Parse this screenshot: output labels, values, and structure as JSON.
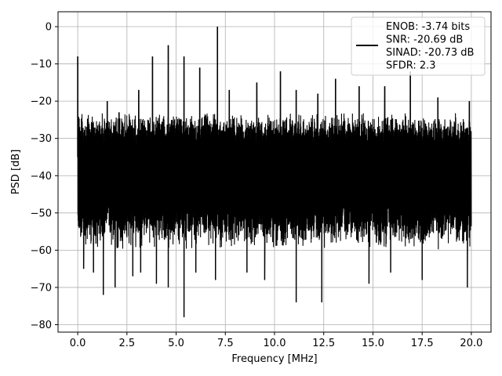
{
  "chart_data": {
    "type": "line",
    "title": "",
    "xlabel": "Frequency [MHz]",
    "ylabel": "PSD [dB]",
    "xlim": [
      -1.0,
      21.0
    ],
    "ylim": [
      -82,
      4
    ],
    "x_ticks": [
      0.0,
      2.5,
      5.0,
      7.5,
      10.0,
      12.5,
      15.0,
      17.5,
      20.0
    ],
    "x_tick_labels": [
      "0.0",
      "2.5",
      "5.0",
      "7.5",
      "10.0",
      "12.5",
      "15.0",
      "17.5",
      "20.0"
    ],
    "y_ticks": [
      0,
      -10,
      -20,
      -30,
      -40,
      -50,
      -60,
      -70,
      -80
    ],
    "y_tick_labels": [
      "0",
      "−10",
      "−20",
      "−30",
      "−40",
      "−50",
      "−60",
      "−70",
      "−80"
    ],
    "grid": true,
    "legend_position": "top-right",
    "series": [
      {
        "color": "#000000",
        "x_range": [
          0.0,
          20.0
        ],
        "noise_band": {
          "upper_db": -25,
          "lower_db": -57,
          "typical_db": -35
        },
        "peaks": [
          {
            "x": 0.0,
            "y": -8
          },
          {
            "x": 1.5,
            "y": -20
          },
          {
            "x": 2.1,
            "y": -23
          },
          {
            "x": 3.1,
            "y": -17
          },
          {
            "x": 3.8,
            "y": -8
          },
          {
            "x": 4.6,
            "y": -5
          },
          {
            "x": 5.4,
            "y": -8
          },
          {
            "x": 6.2,
            "y": -11
          },
          {
            "x": 7.1,
            "y": 0
          },
          {
            "x": 7.7,
            "y": -17
          },
          {
            "x": 9.1,
            "y": -15
          },
          {
            "x": 10.3,
            "y": -12
          },
          {
            "x": 11.1,
            "y": -17
          },
          {
            "x": 12.2,
            "y": -18
          },
          {
            "x": 13.1,
            "y": -14
          },
          {
            "x": 14.3,
            "y": -16
          },
          {
            "x": 15.6,
            "y": -16
          },
          {
            "x": 16.9,
            "y": -12
          },
          {
            "x": 18.3,
            "y": -19
          },
          {
            "x": 19.9,
            "y": -20
          }
        ],
        "dips": [
          {
            "x": 0.3,
            "y": -65
          },
          {
            "x": 0.8,
            "y": -66
          },
          {
            "x": 1.3,
            "y": -72
          },
          {
            "x": 1.9,
            "y": -70
          },
          {
            "x": 2.8,
            "y": -67
          },
          {
            "x": 3.2,
            "y": -66
          },
          {
            "x": 4.0,
            "y": -69
          },
          {
            "x": 4.6,
            "y": -70
          },
          {
            "x": 5.4,
            "y": -78
          },
          {
            "x": 6.0,
            "y": -66
          },
          {
            "x": 7.0,
            "y": -68
          },
          {
            "x": 8.6,
            "y": -66
          },
          {
            "x": 9.5,
            "y": -68
          },
          {
            "x": 11.1,
            "y": -74
          },
          {
            "x": 12.4,
            "y": -74
          },
          {
            "x": 14.8,
            "y": -69
          },
          {
            "x": 15.9,
            "y": -66
          },
          {
            "x": 17.5,
            "y": -68
          },
          {
            "x": 19.8,
            "y": -70
          }
        ]
      }
    ]
  },
  "legend": {
    "lines": [
      "ENOB: -3.74 bits",
      "SNR: -20.69 dB",
      "SINAD: -20.73 dB",
      "SFDR: 2.3"
    ]
  }
}
